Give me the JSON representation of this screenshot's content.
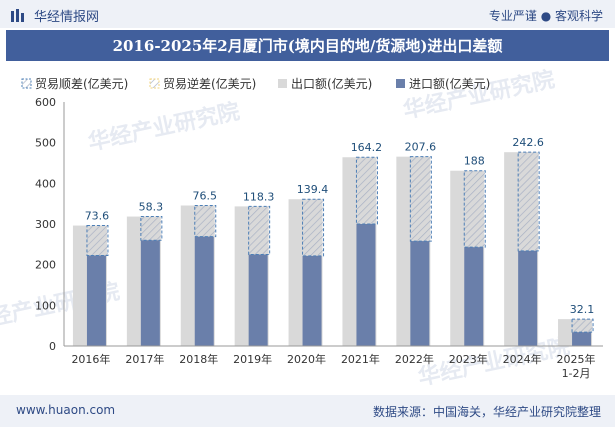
{
  "header": {
    "brand": "华经情报网",
    "tagline": "专业严谨 ● 客观科学"
  },
  "title": "2016-2025年2月厦门市(境内目的地/货源地)进出口差额",
  "footer": {
    "website": "www.huaon.com",
    "source": "数据来源：中国海关，华经产业研究院整理"
  },
  "watermark": "华经产业研究院",
  "chart_data": {
    "type": "bar",
    "categories": [
      "2016年",
      "2017年",
      "2018年",
      "2019年",
      "2020年",
      "2021年",
      "2022年",
      "2023年",
      "2024年",
      "2025年\n1-2月"
    ],
    "series": [
      {
        "name": "出口额(亿美元)",
        "values": [
          296.2,
          318.3,
          345.5,
          343.3,
          360.9,
          464.2,
          465.6,
          431.0,
          476.6,
          66.1
        ]
      },
      {
        "name": "进口额(亿美元)",
        "values": [
          222.6,
          260.0,
          269.0,
          225.0,
          221.5,
          300.0,
          258.0,
          243.0,
          234.0,
          34.0
        ]
      },
      {
        "name": "贸易顺差(亿美元)",
        "values": [
          73.6,
          58.3,
          76.5,
          118.3,
          139.4,
          164.2,
          207.6,
          188,
          242.6,
          32.1
        ]
      },
      {
        "name": "贸易逆差(亿美元)",
        "values": [
          0,
          0,
          0,
          0,
          0,
          0,
          0,
          0,
          0,
          0
        ]
      }
    ],
    "data_labels": [
      "73.6",
      "58.3",
      "76.5",
      "118.3",
      "139.4",
      "164.2",
      "207.6",
      "188",
      "242.6",
      "32.1"
    ],
    "ylim": [
      0,
      600
    ],
    "yticks": [
      0,
      100,
      200,
      300,
      400,
      500,
      600
    ],
    "legend_position": "top-left",
    "colors": {
      "export": "#d9d9d9",
      "import": "#6a7faa",
      "surplus_border": "#4d7fb6",
      "hatch": "#a9b2c4",
      "deficit": "#f2d37c",
      "axis": "#999999",
      "label": "#1f4e79"
    }
  }
}
